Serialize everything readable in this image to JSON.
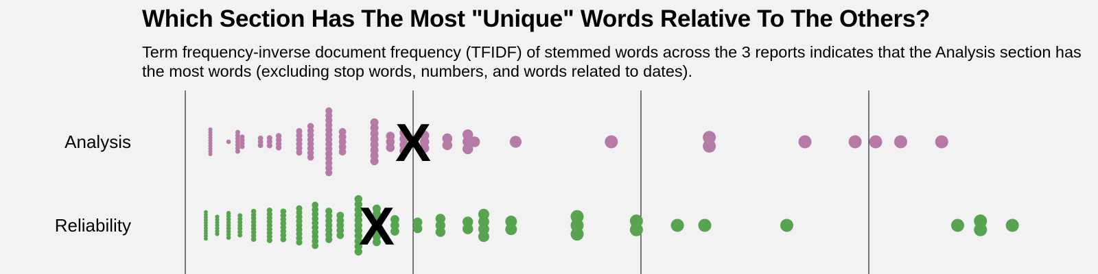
{
  "chart_data": {
    "type": "scatter",
    "title": "Which Section Has The Most \"Unique\" Words Relative To The Others?",
    "subtitle": "Term frequency-inverse document frequency (TFIDF) of stemmed words across the 3 reports indicates that the Analysis section has the most words (excluding stop words, numbers, and words related to dates).",
    "xlim": [
      0,
      4
    ],
    "x_gridlines": [
      1,
      2,
      3
    ],
    "grid": true,
    "xlabel": "",
    "ylabel": "",
    "categories": [
      "Analysis",
      "Reliability"
    ],
    "mean_marker": "X",
    "series": [
      {
        "category": "Analysis",
        "color": "#b57ba6",
        "mean": 1.0,
        "columns": [
          {
            "x": 0.11,
            "count": 10
          },
          {
            "x": 0.19,
            "count": 1
          },
          {
            "x": 0.23,
            "count": 7
          },
          {
            "x": 0.25,
            "count": 4
          },
          {
            "x": 0.33,
            "count": 3
          },
          {
            "x": 0.37,
            "count": 3
          },
          {
            "x": 0.41,
            "count": 4
          },
          {
            "x": 0.5,
            "count": 6
          },
          {
            "x": 0.55,
            "count": 8
          },
          {
            "x": 0.63,
            "count": 14
          },
          {
            "x": 0.69,
            "count": 5
          },
          {
            "x": 0.83,
            "count": 8
          },
          {
            "x": 0.9,
            "count": 3
          },
          {
            "x": 0.96,
            "count": 4
          },
          {
            "x": 1.05,
            "count": 3
          },
          {
            "x": 1.15,
            "count": 2
          },
          {
            "x": 1.24,
            "count": 3
          },
          {
            "x": 1.27,
            "count": 1
          },
          {
            "x": 1.45,
            "count": 1
          },
          {
            "x": 1.87,
            "count": 1
          },
          {
            "x": 2.3,
            "count": 2
          },
          {
            "x": 2.72,
            "count": 1
          },
          {
            "x": 2.94,
            "count": 1
          },
          {
            "x": 3.03,
            "count": 1
          },
          {
            "x": 3.14,
            "count": 1
          },
          {
            "x": 3.32,
            "count": 1
          }
        ]
      },
      {
        "category": "Reliability",
        "color": "#57a34f",
        "mean": 0.84,
        "columns": [
          {
            "x": 0.09,
            "count": 11
          },
          {
            "x": 0.14,
            "count": 7
          },
          {
            "x": 0.19,
            "count": 9
          },
          {
            "x": 0.24,
            "count": 7
          },
          {
            "x": 0.3,
            "count": 9
          },
          {
            "x": 0.37,
            "count": 9
          },
          {
            "x": 0.43,
            "count": 8
          },
          {
            "x": 0.5,
            "count": 9
          },
          {
            "x": 0.57,
            "count": 10
          },
          {
            "x": 0.63,
            "count": 7
          },
          {
            "x": 0.68,
            "count": 5
          },
          {
            "x": 0.76,
            "count": 11
          },
          {
            "x": 0.84,
            "count": 7
          },
          {
            "x": 0.92,
            "count": 3
          },
          {
            "x": 1.02,
            "count": 2
          },
          {
            "x": 1.12,
            "count": 3
          },
          {
            "x": 1.24,
            "count": 2
          },
          {
            "x": 1.31,
            "count": 4
          },
          {
            "x": 1.43,
            "count": 2
          },
          {
            "x": 1.72,
            "count": 3
          },
          {
            "x": 1.98,
            "count": 2
          },
          {
            "x": 2.16,
            "count": 1
          },
          {
            "x": 2.28,
            "count": 1
          },
          {
            "x": 2.64,
            "count": 1
          },
          {
            "x": 3.39,
            "count": 1
          },
          {
            "x": 3.49,
            "count": 2
          },
          {
            "x": 3.63,
            "count": 1
          }
        ]
      }
    ]
  }
}
